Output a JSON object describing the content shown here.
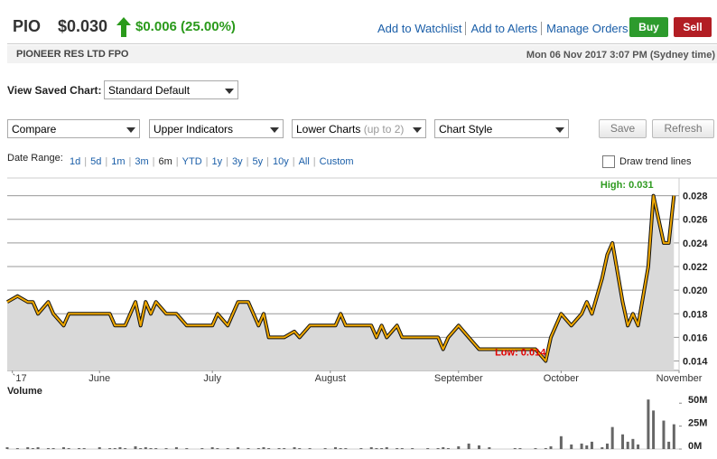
{
  "header": {
    "symbol": "PIO",
    "price": "$0.030",
    "change": "$0.006 (25.00%)",
    "change_color": "#2a9a1b",
    "links": [
      "Add to Watchlist",
      "Add to Alerts",
      "Manage Orders"
    ],
    "buy": "Buy",
    "sell": "Sell",
    "company": "PIONEER RES LTD FPO",
    "timestamp": "Mon 06 Nov 2017 3:07 PM (Sydney time)"
  },
  "toolbar": {
    "saved_label": "View Saved Chart:",
    "saved_value": "Standard Default",
    "dropdowns": [
      "Compare",
      "Upper Indicators",
      "Lower Charts",
      "Chart Style"
    ],
    "lower_hint": "(up to 2)",
    "buttons": [
      "Save",
      "Refresh"
    ],
    "date_range_label": "Date Range:",
    "ranges": [
      "1d",
      "5d",
      "1m",
      "3m",
      "6m",
      "YTD",
      "1y",
      "3y",
      "5y",
      "10y",
      "All",
      "Custom"
    ],
    "active_range": "6m",
    "trend_label": "Draw trend lines"
  },
  "chart_data": [
    {
      "type": "line",
      "color": "#f0a800",
      "fill": "#d9d9d9",
      "grid": true,
      "x": [
        0,
        2,
        4,
        5,
        6,
        8,
        9,
        11,
        12,
        14,
        15,
        18,
        20,
        21,
        22,
        23,
        25,
        26,
        27,
        28,
        29,
        31,
        33,
        35,
        38,
        40,
        41,
        43,
        45,
        47,
        49,
        50,
        51,
        53,
        54,
        56,
        57,
        59,
        62,
        64,
        65,
        66,
        69,
        71,
        72,
        73,
        74,
        76,
        77,
        79,
        82,
        84,
        85,
        86,
        88,
        90,
        92,
        94,
        99,
        100,
        103,
        105,
        106,
        108,
        110,
        112,
        113,
        114,
        116,
        117,
        118,
        120,
        121,
        122,
        123,
        125,
        126,
        128,
        129,
        130
      ],
      "values": [
        0.019,
        0.0195,
        0.019,
        0.019,
        0.018,
        0.019,
        0.018,
        0.017,
        0.018,
        0.018,
        0.018,
        0.018,
        0.018,
        0.017,
        0.017,
        0.017,
        0.019,
        0.017,
        0.019,
        0.018,
        0.019,
        0.018,
        0.018,
        0.017,
        0.017,
        0.017,
        0.018,
        0.017,
        0.019,
        0.019,
        0.017,
        0.018,
        0.016,
        0.016,
        0.016,
        0.0165,
        0.016,
        0.017,
        0.017,
        0.017,
        0.018,
        0.017,
        0.017,
        0.017,
        0.016,
        0.017,
        0.016,
        0.017,
        0.016,
        0.016,
        0.016,
        0.016,
        0.015,
        0.016,
        0.017,
        0.016,
        0.015,
        0.015,
        0.015,
        0.015,
        0.015,
        0.014,
        0.016,
        0.018,
        0.017,
        0.018,
        0.019,
        0.018,
        0.021,
        0.023,
        0.024,
        0.019,
        0.017,
        0.018,
        0.017,
        0.022,
        0.028,
        0.024,
        0.024,
        0.028
      ],
      "xlim": [
        0,
        131
      ],
      "xticks": [
        {
          "value": 1,
          "label": "`17"
        },
        {
          "value": 18,
          "label": "June"
        },
        {
          "value": 40,
          "label": "July"
        },
        {
          "value": 63,
          "label": "August"
        },
        {
          "value": 88,
          "label": "September"
        },
        {
          "value": 108,
          "label": "October"
        },
        {
          "value": 131,
          "label": "November"
        }
      ],
      "ylim": [
        0.0132,
        0.0295
      ],
      "yticks": [
        0.014,
        0.016,
        0.018,
        {
          "value": 0.02,
          "label": "0.020"
        },
        0.022,
        0.024,
        0.026,
        0.028
      ],
      "annotations": [
        {
          "text": "High: 0.031",
          "color": "#2e9a1f"
        },
        {
          "text": "Low: 0.014",
          "color": "#e00000"
        }
      ]
    },
    {
      "type": "bar",
      "title": "Volume",
      "color": "#666666",
      "x": [
        0,
        2,
        4,
        5,
        6,
        8,
        9,
        11,
        12,
        14,
        15,
        18,
        20,
        21,
        22,
        23,
        25,
        26,
        27,
        28,
        29,
        31,
        33,
        35,
        38,
        40,
        41,
        43,
        45,
        47,
        49,
        50,
        51,
        53,
        54,
        56,
        57,
        59,
        62,
        64,
        65,
        66,
        69,
        71,
        72,
        73,
        74,
        76,
        77,
        79,
        82,
        84,
        85,
        86,
        88,
        90,
        92,
        94,
        99,
        100,
        103,
        105,
        106,
        108,
        110,
        112,
        113,
        114,
        116,
        117,
        118,
        120,
        121,
        122,
        123,
        125,
        126,
        128,
        129,
        130
      ],
      "values": [
        2,
        1,
        2,
        1,
        2,
        1,
        1,
        2,
        1,
        1,
        1,
        2,
        1,
        1,
        2,
        1,
        3,
        1,
        2,
        1,
        1,
        1,
        2,
        1,
        1,
        2,
        1,
        1,
        2,
        1,
        1,
        2,
        1,
        1,
        1,
        2,
        1,
        1,
        1,
        2,
        1,
        1,
        1,
        2,
        1,
        1,
        2,
        1,
        1,
        1,
        1,
        1,
        2,
        1,
        3,
        6,
        4,
        2,
        1,
        1,
        1,
        1,
        3,
        14,
        5,
        6,
        4,
        8,
        2,
        6,
        24,
        16,
        8,
        11,
        5,
        54,
        42,
        31,
        8,
        27
      ],
      "xlim": [
        0,
        131
      ],
      "ylim": [
        0,
        64
      ],
      "yticks": [
        {
          "value": 0,
          "label": "0M"
        },
        {
          "value": 25,
          "label": "25M"
        },
        {
          "value": 50,
          "label": "50M"
        }
      ]
    }
  ]
}
